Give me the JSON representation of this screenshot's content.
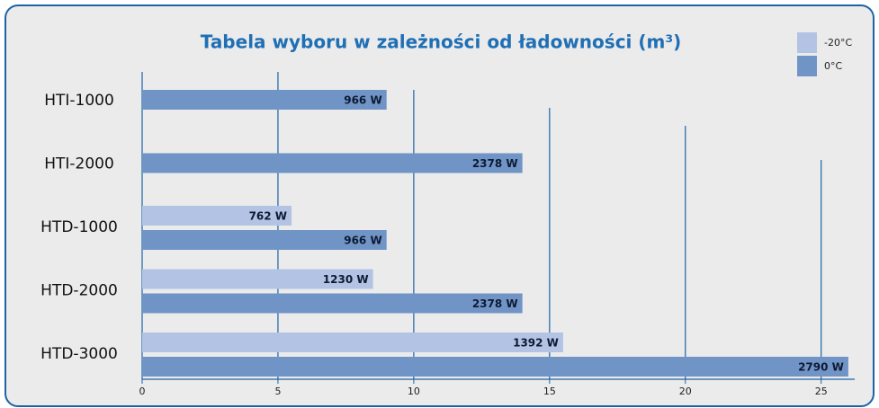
{
  "chart_data": {
    "type": "bar",
    "orientation": "horizontal",
    "title": "Tabela wyboru w zależności od ładowności (m³)",
    "categories": [
      "HTI-1000",
      "HTI-2000",
      "HTD-1000",
      "HTD-2000",
      "HTD-3000"
    ],
    "series": [
      {
        "name": "-20°C",
        "color": "#b3c3e3",
        "values": [
          null,
          null,
          5.5,
          8.5,
          15.5
        ],
        "bar_labels": [
          null,
          null,
          "762 W",
          "1230 W",
          "1392 W"
        ]
      },
      {
        "name": "0°C",
        "color": "#7194c6",
        "values": [
          9,
          14,
          9,
          14,
          26
        ],
        "bar_labels": [
          "966 W",
          "2378 W",
          "966 W",
          "2378 W",
          "2790 W"
        ]
      }
    ],
    "xlim": [
      0,
      26.5
    ],
    "xticks": [
      0,
      5,
      10,
      15,
      20,
      25
    ],
    "grid": true,
    "legend": "upper right"
  }
}
